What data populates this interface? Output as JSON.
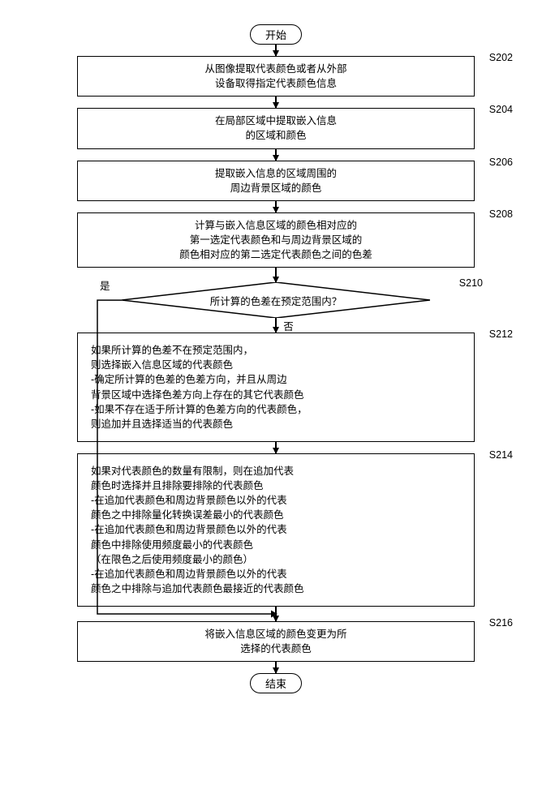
{
  "flowchart": {
    "type": "flowchart",
    "background_color": "#ffffff",
    "border_color": "#000000",
    "line_width": 1.5,
    "font_family": "Microsoft YaHei",
    "font_size": 12.5,
    "terminators": {
      "start": "开始",
      "end": "结束"
    },
    "steps": {
      "s202": {
        "id": "S202",
        "text_line1": "从图像提取代表颜色或者从外部",
        "text_line2": "设备取得指定代表颜色信息"
      },
      "s204": {
        "id": "S204",
        "text_line1": "在局部区域中提取嵌入信息",
        "text_line2": "的区域和颜色"
      },
      "s206": {
        "id": "S206",
        "text_line1": "提取嵌入信息的区域周围的",
        "text_line2": "周边背景区域的颜色"
      },
      "s208": {
        "id": "S208",
        "text_line1": "计算与嵌入信息区域的颜色相对应的",
        "text_line2": "第一选定代表颜色和与周边背景区域的",
        "text_line3": "颜色相对应的第二选定代表颜色之间的色差"
      },
      "s210": {
        "id": "S210",
        "question": "所计算的色差在预定范围内？",
        "yes": "是",
        "no": "否"
      },
      "s212": {
        "id": "S212",
        "lines": [
          "如果所计算的色差不在预定范围内，",
          "则选择嵌入信息区域的代表颜色",
          "-确定所计算的色差的色差方向，并且从周边",
          "背景区域中选择色差方向上存在的其它代表颜色",
          "-如果不存在适于所计算的色差方向的代表颜色，",
          "则追加并且选择适当的代表颜色"
        ]
      },
      "s214": {
        "id": "S214",
        "lines": [
          "如果对代表颜色的数量有限制，则在追加代表",
          "颜色时选择并且排除要排除的代表颜色",
          "-在追加代表颜色和周边背景颜色以外的代表",
          "颜色之中排除量化转换误差最小的代表颜色",
          "-在追加代表颜色和周边背景颜色以外的代表",
          "颜色中排除使用频度最小的代表颜色",
          "（在限色之后使用频度最小的颜色）",
          "-在追加代表颜色和周边背景颜色以外的代表",
          "颜色之中排除与追加代表颜色最接近的代表颜色"
        ]
      },
      "s216": {
        "id": "S216",
        "text_line1": "将嵌入信息区域的颜色变更为所",
        "text_line2": "选择的代表颜色"
      }
    }
  }
}
